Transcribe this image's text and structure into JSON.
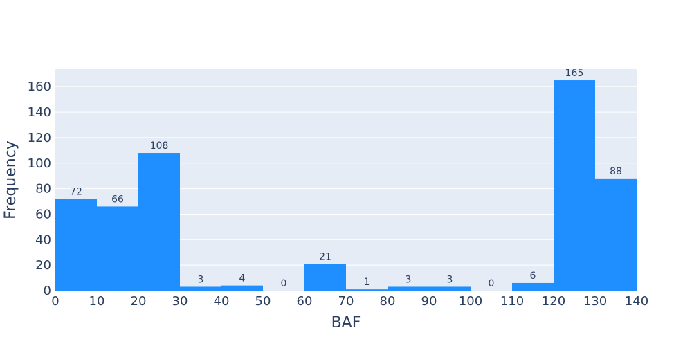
{
  "chart_data": {
    "type": "bar",
    "title": "",
    "xlabel": "BAF",
    "ylabel": "Frequency",
    "bin_edges": [
      0,
      10,
      20,
      30,
      40,
      50,
      60,
      70,
      80,
      90,
      100,
      110,
      120,
      130,
      140
    ],
    "values": [
      72,
      66,
      108,
      3,
      4,
      0,
      21,
      1,
      3,
      3,
      0,
      6,
      165,
      88
    ],
    "xlim": [
      0,
      140
    ],
    "ylim": [
      0,
      173.7
    ],
    "x_ticks": [
      0,
      10,
      20,
      30,
      40,
      50,
      60,
      70,
      80,
      90,
      100,
      110,
      120,
      130,
      140
    ],
    "y_ticks": [
      0,
      20,
      40,
      60,
      80,
      100,
      120,
      140,
      160
    ],
    "grid": true,
    "colors": {
      "bar": "#1f8fff",
      "plot_background": "#e5ecf6",
      "text": "#2a3f5f"
    }
  }
}
